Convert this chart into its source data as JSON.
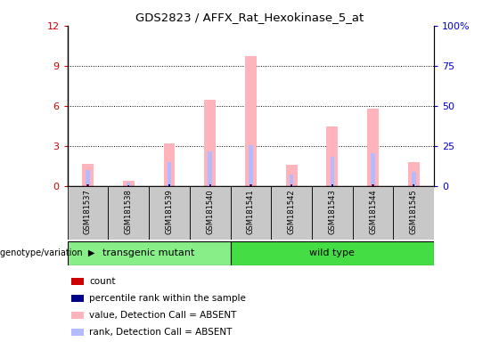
{
  "title": "GDS2823 / AFFX_Rat_Hexokinase_5_at",
  "samples": [
    "GSM181537",
    "GSM181538",
    "GSM181539",
    "GSM181540",
    "GSM181541",
    "GSM181542",
    "GSM181543",
    "GSM181544",
    "GSM181545"
  ],
  "pink_bars": [
    1.7,
    0.4,
    3.2,
    6.5,
    9.7,
    1.6,
    4.5,
    5.8,
    1.8
  ],
  "blue_bars": [
    1.2,
    0.3,
    1.8,
    2.6,
    3.1,
    0.9,
    2.2,
    2.5,
    1.1
  ],
  "red_markers": [
    0.18,
    0.07,
    0.18,
    0.18,
    0.18,
    0.12,
    0.18,
    0.18,
    0.14
  ],
  "dark_blue_markers": [
    0.14,
    0.06,
    0.16,
    0.15,
    0.15,
    0.1,
    0.15,
    0.14,
    0.12
  ],
  "ylim": [
    0,
    12
  ],
  "yticks_left": [
    0,
    3,
    6,
    9,
    12
  ],
  "yticks_right": [
    0,
    25,
    50,
    75,
    100
  ],
  "group1_label": "transgenic mutant",
  "group2_label": "wild type",
  "group1_indices": [
    0,
    1,
    2,
    3
  ],
  "group2_indices": [
    4,
    5,
    6,
    7,
    8
  ],
  "genotype_label": "genotype/variation",
  "left_color": "#cc0000",
  "right_color": "#0000cc",
  "pink_color": "#ffb3bb",
  "blue_bar_color": "#b3bbff",
  "group_bg_color": "#c8c8c8",
  "group1_bg": "#88ee88",
  "group2_bg": "#44dd44",
  "legend_items": [
    {
      "color": "#cc0000",
      "label": "count"
    },
    {
      "color": "#000088",
      "label": "percentile rank within the sample"
    },
    {
      "color": "#ffb3bb",
      "label": "value, Detection Call = ABSENT"
    },
    {
      "color": "#b3bbff",
      "label": "rank, Detection Call = ABSENT"
    }
  ]
}
